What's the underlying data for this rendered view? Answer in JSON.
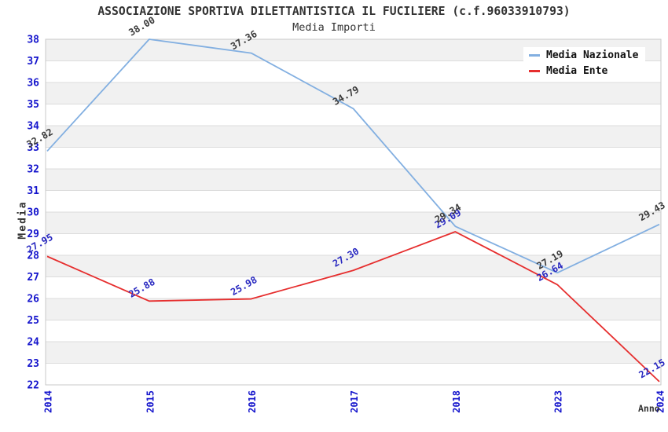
{
  "chart_data": {
    "type": "line",
    "title": "ASSOCIAZIONE SPORTIVA DILETTANTISTICA IL FUCILIERE (c.f.96033910793)",
    "subtitle": "Media Importi",
    "xlabel": "Anno",
    "ylabel": "Media",
    "categories": [
      "2014",
      "2015",
      "2016",
      "2017",
      "2018",
      "2023",
      "2024"
    ],
    "series": [
      {
        "name": "Media Nazionale",
        "color": "#82afe1",
        "label_color": "#3a3a3a",
        "values": [
          32.82,
          38.0,
          37.36,
          34.79,
          29.34,
          27.19,
          29.43
        ]
      },
      {
        "name": "Media Ente",
        "color": "#e62e2e",
        "label_color": "#2828c0",
        "values": [
          27.95,
          25.88,
          25.98,
          27.3,
          29.09,
          26.64,
          22.15
        ]
      }
    ],
    "ylim": [
      22,
      38
    ],
    "ytick_step": 1,
    "grid": true,
    "legend_position": "top-right",
    "band_colors": [
      "#f1f1f1",
      "#ffffff"
    ],
    "gridline_color": "#dcdcdc",
    "plot_border_color": "#c9c9c9",
    "tick_label_color": "#1414cc",
    "title_color": "#333333"
  }
}
